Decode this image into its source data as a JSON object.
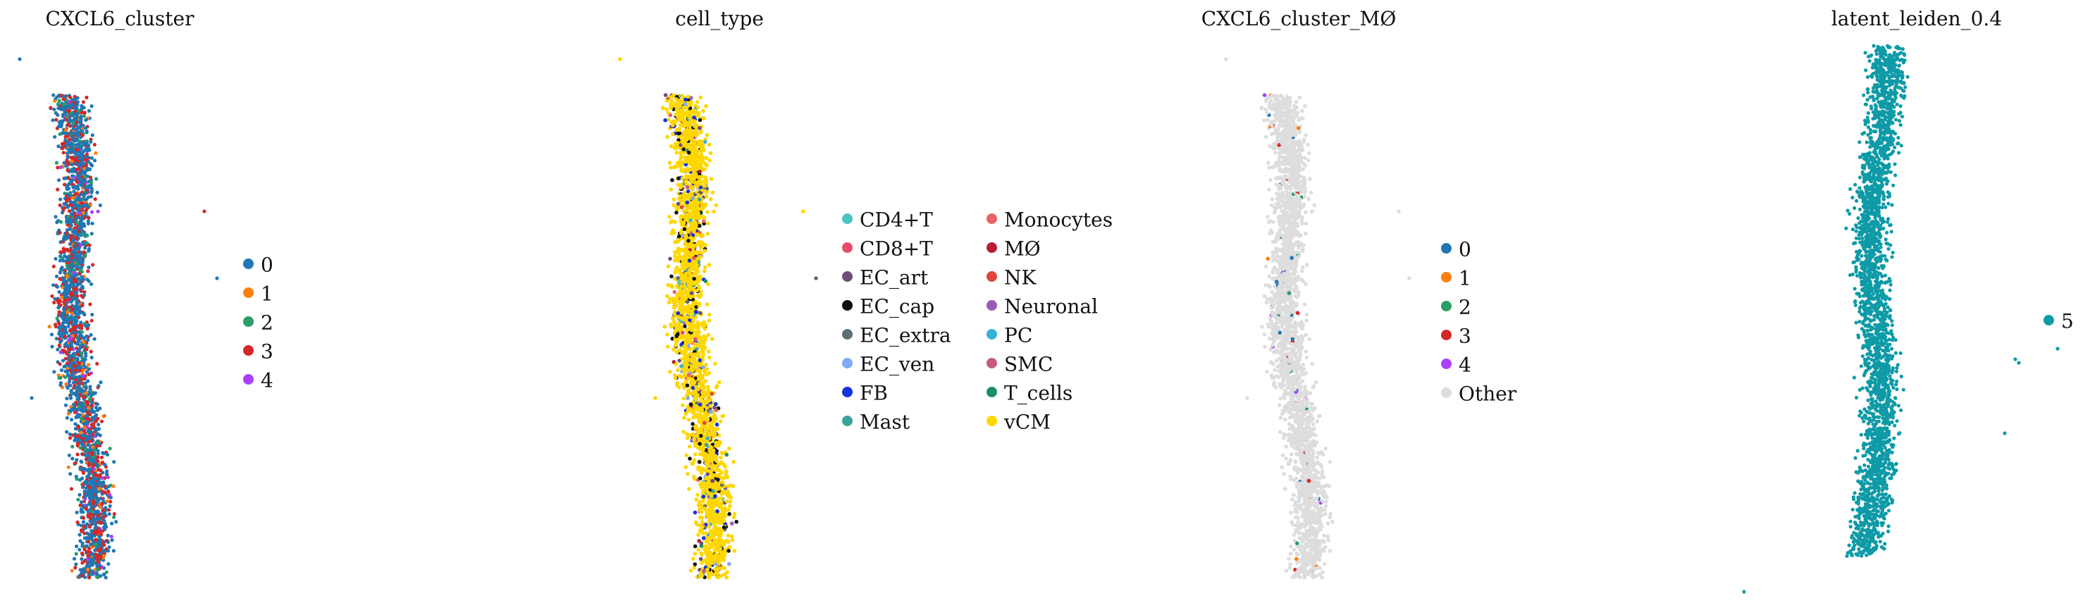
{
  "chart_data": [
    {
      "type": "scatter",
      "title": "CXCL6_cluster",
      "legend_position": "right",
      "axes_visible": false,
      "series": [
        {
          "name": "0",
          "color": "#1f77b4"
        },
        {
          "name": "1",
          "color": "#ff7f0e"
        },
        {
          "name": "2",
          "color": "#279e68"
        },
        {
          "name": "3",
          "color": "#d62728"
        },
        {
          "name": "4",
          "color": "#aa40fc"
        }
      ]
    },
    {
      "type": "scatter",
      "title": "cell_type",
      "legend_position": "right",
      "axes_visible": false,
      "series": [
        {
          "name": "CD4+T",
          "color": "#4ec2c2"
        },
        {
          "name": "CD8+T",
          "color": "#e64b6e"
        },
        {
          "name": "EC_art",
          "color": "#6b4f7a"
        },
        {
          "name": "EC_cap",
          "color": "#111111"
        },
        {
          "name": "EC_extra",
          "color": "#5c6f77"
        },
        {
          "name": "EC_ven",
          "color": "#7fa9f5"
        },
        {
          "name": "FB",
          "color": "#1432e0"
        },
        {
          "name": "Mast",
          "color": "#3aa39a"
        },
        {
          "name": "Monocytes",
          "color": "#ea6464"
        },
        {
          "name": "MØ",
          "color": "#b51d35"
        },
        {
          "name": "NK",
          "color": "#e0453c"
        },
        {
          "name": "Neuronal",
          "color": "#9b59b6"
        },
        {
          "name": "PC",
          "color": "#36b1d6"
        },
        {
          "name": "SMC",
          "color": "#c45c82"
        },
        {
          "name": "T_cells",
          "color": "#1a8f70"
        },
        {
          "name": "vCM",
          "color": "#ffd700"
        }
      ]
    },
    {
      "type": "scatter",
      "title": "CXCL6_cluster_MØ",
      "legend_position": "right",
      "axes_visible": false,
      "series": [
        {
          "name": "0",
          "color": "#1f77b4"
        },
        {
          "name": "1",
          "color": "#ff7f0e"
        },
        {
          "name": "2",
          "color": "#279e68"
        },
        {
          "name": "3",
          "color": "#d62728"
        },
        {
          "name": "4",
          "color": "#aa40fc"
        },
        {
          "name": "Other",
          "color": "#dddddd"
        }
      ]
    },
    {
      "type": "scatter",
      "title": "latent_leiden_0.4",
      "legend_position": "right",
      "axes_visible": false,
      "series": [
        {
          "name": "5",
          "color": "#0e9aa7"
        }
      ]
    }
  ]
}
